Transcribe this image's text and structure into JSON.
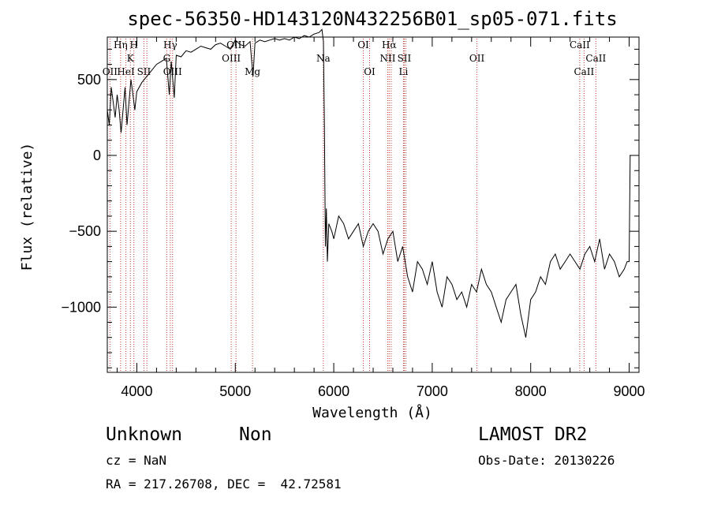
{
  "chart_data": {
    "type": "line",
    "title": "spec-56350-HD143120N432256B01_sp05-071.fits",
    "xlabel": "Wavelength (Å)",
    "ylabel": "Flux (relative)",
    "xlim": [
      3700,
      9100
    ],
    "ylim": [
      -1430,
      780
    ],
    "xticks": [
      4000,
      5000,
      6000,
      7000,
      8000,
      9000
    ],
    "yticks": [
      -1000,
      -500,
      0,
      500
    ],
    "ytick_labels": [
      "−1000",
      "−500",
      "0",
      "500"
    ],
    "grid": false,
    "series": [
      {
        "x": [
          3700,
          3720,
          3740,
          3760,
          3780,
          3800,
          3820,
          3840,
          3860,
          3880,
          3900,
          3920,
          3940,
          3960,
          3980,
          4000,
          4050,
          4100,
          4150,
          4200,
          4250,
          4300,
          4330,
          4350,
          4380,
          4400,
          4450,
          4500,
          4550,
          4600,
          4650,
          4700,
          4750,
          4800,
          4850,
          4900,
          4950,
          5000,
          5050,
          5100,
          5150,
          5180,
          5200,
          5250,
          5300,
          5350,
          5400,
          5450,
          5500,
          5550,
          5600,
          5650,
          5700,
          5750,
          5800,
          5850,
          5880,
          5895,
          5905,
          5915,
          5925,
          5935,
          5950,
          5980,
          6000,
          6050,
          6100,
          6150,
          6200,
          6250,
          6300,
          6350,
          6400,
          6450,
          6500,
          6550,
          6600,
          6650,
          6700,
          6750,
          6800,
          6850,
          6900,
          6950,
          7000,
          7050,
          7100,
          7150,
          7200,
          7250,
          7300,
          7350,
          7400,
          7450,
          7500,
          7550,
          7600,
          7650,
          7700,
          7750,
          7800,
          7850,
          7900,
          7950,
          8000,
          8050,
          8100,
          8150,
          8200,
          8250,
          8300,
          8350,
          8400,
          8450,
          8500,
          8550,
          8600,
          8650,
          8700,
          8750,
          8800,
          8850,
          8900,
          8950,
          8980,
          9000,
          9010
        ],
        "y": [
          300,
          200,
          450,
          350,
          250,
          400,
          300,
          150,
          300,
          450,
          200,
          350,
          500,
          400,
          300,
          420,
          480,
          520,
          560,
          600,
          620,
          640,
          400,
          620,
          380,
          660,
          650,
          690,
          680,
          700,
          720,
          710,
          700,
          730,
          740,
          720,
          700,
          760,
          730,
          720,
          750,
          520,
          740,
          760,
          750,
          760,
          770,
          760,
          770,
          760,
          780,
          770,
          790,
          780,
          800,
          810,
          830,
          750,
          200,
          -600,
          -350,
          -700,
          -450,
          -500,
          -550,
          -400,
          -450,
          -550,
          -500,
          -450,
          -600,
          -500,
          -450,
          -500,
          -650,
          -550,
          -500,
          -700,
          -600,
          -800,
          -900,
          -700,
          -750,
          -850,
          -700,
          -900,
          -1000,
          -800,
          -850,
          -950,
          -900,
          -1000,
          -850,
          -900,
          -750,
          -850,
          -900,
          -1000,
          -1100,
          -950,
          -900,
          -850,
          -1050,
          -1200,
          -950,
          -900,
          -800,
          -850,
          -700,
          -650,
          -750,
          -700,
          -650,
          -700,
          -750,
          -650,
          -600,
          -700,
          -550,
          -750,
          -650,
          -700,
          -800,
          -750,
          -700,
          -700,
          0
        ]
      }
    ],
    "line_markers": [
      {
        "wave": 3727,
        "label": "OII",
        "row": 3
      },
      {
        "wave": 3835,
        "label": "Hη",
        "row": 1
      },
      {
        "wave": 3889,
        "label": "HeI",
        "row": 3
      },
      {
        "wave": 3934,
        "label": "K",
        "row": 2
      },
      {
        "wave": 3970,
        "label": "H",
        "row": 1
      },
      {
        "wave": 4072,
        "label": "SII",
        "row": 3
      },
      {
        "wave": 4102,
        "label": "",
        "row": 0
      },
      {
        "wave": 4304,
        "label": "G",
        "row": 2
      },
      {
        "wave": 4340,
        "label": "Hγ",
        "row": 1
      },
      {
        "wave": 4363,
        "label": "OIII",
        "row": 3
      },
      {
        "wave": 4959,
        "label": "OIII",
        "row": 2
      },
      {
        "wave": 5007,
        "label": "OIII",
        "row": 1
      },
      {
        "wave": 5175,
        "label": "Mg",
        "row": 3
      },
      {
        "wave": 5894,
        "label": "Na",
        "row": 2
      },
      {
        "wave": 6300,
        "label": "OI",
        "row": 1
      },
      {
        "wave": 6364,
        "label": "OI",
        "row": 3
      },
      {
        "wave": 6548,
        "label": "NII",
        "row": 2
      },
      {
        "wave": 6563,
        "label": "Hα",
        "row": 1
      },
      {
        "wave": 6583,
        "label": "",
        "row": 0
      },
      {
        "wave": 6708,
        "label": "Li",
        "row": 3
      },
      {
        "wave": 6716,
        "label": "SII",
        "row": 2
      },
      {
        "wave": 6731,
        "label": "",
        "row": 0
      },
      {
        "wave": 7454,
        "label": "OII",
        "row": 2
      },
      {
        "wave": 8498,
        "label": "CaII",
        "row": 1
      },
      {
        "wave": 8542,
        "label": "CaII",
        "row": 3
      },
      {
        "wave": 8662,
        "label": "CaII",
        "row": 2
      }
    ]
  },
  "info": {
    "class_label": "Unknown",
    "subclass_label": "Non",
    "survey": "LAMOST DR2",
    "cz": "cz = NaN",
    "obs_date": "Obs-Date: 20130226",
    "coords": "RA = 217.26708, DEC =  42.72581"
  }
}
